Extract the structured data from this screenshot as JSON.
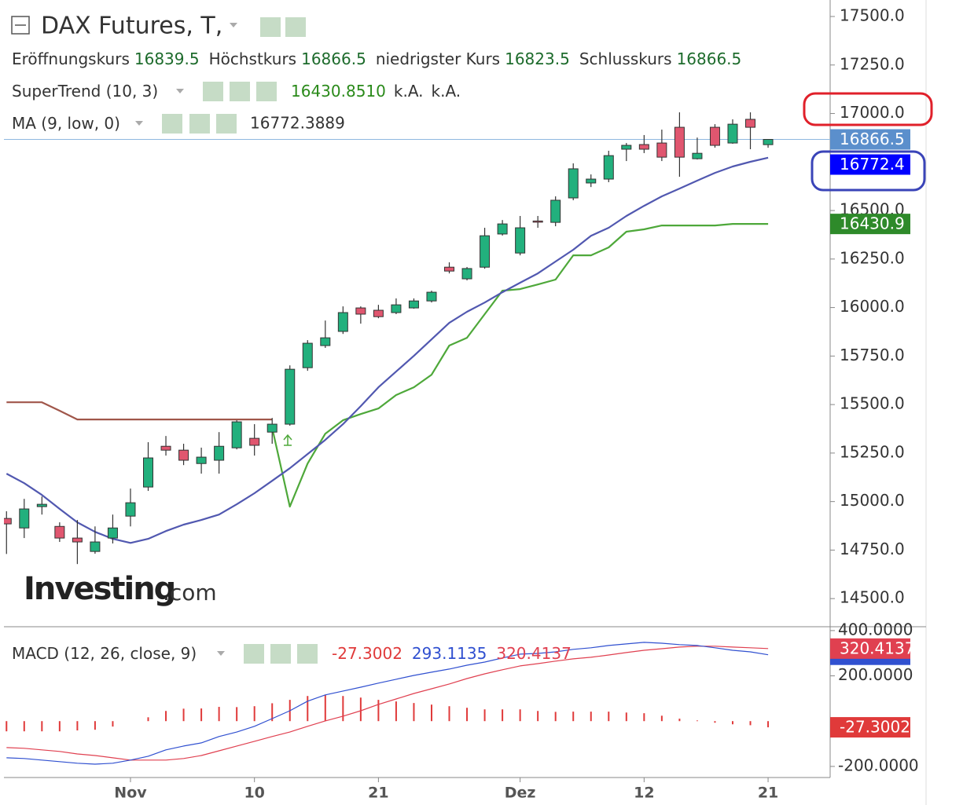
{
  "chart_data": {
    "type": "candlestick",
    "title": "DAX Futures, T,",
    "ohlc_labels": {
      "open": "Eröffnungskurs",
      "high": "Höchstkurs",
      "low": "niedrigster Kurs",
      "close": "Schlusskurs"
    },
    "categories": [
      null,
      null,
      null,
      null,
      null,
      null,
      null,
      "Nov",
      null,
      null,
      null,
      null,
      null,
      null,
      "10",
      null,
      null,
      null,
      null,
      null,
      null,
      "21",
      null,
      null,
      null,
      null,
      null,
      null,
      null,
      "Dez",
      null,
      null,
      null,
      null,
      null,
      null,
      "12",
      null,
      null,
      null,
      null,
      null,
      null,
      "21"
    ],
    "open": [
      14913,
      14864,
      14974,
      14872,
      14812,
      14743,
      14812,
      14925,
      15075,
      15285,
      15265,
      15196,
      15213,
      15277,
      15326,
      15358,
      15399,
      15690,
      15804,
      15877,
      15998,
      15986,
      15974,
      15998,
      16034,
      16208,
      16148,
      16208,
      16379,
      16281,
      16446,
      16439,
      16565,
      16642,
      16662,
      16816,
      16840,
      16848,
      16929,
      16767,
      16929,
      16848,
      16970,
      16839.5
    ],
    "high": [
      14950,
      15014,
      15026,
      14893,
      14905,
      14872,
      14933,
      15067,
      15306,
      15338,
      15298,
      15278,
      15358,
      15419,
      15399,
      15431,
      15702,
      15832,
      15933,
      16006,
      16006,
      16014,
      16047,
      16047,
      16087,
      16233,
      16209,
      16411,
      16451,
      16472,
      16472,
      16573,
      16743,
      16686,
      16808,
      16848,
      16889,
      16917,
      17006,
      16876,
      16945,
      16970,
      17006,
      16866.5
    ],
    "low": [
      14730,
      14812,
      14933,
      14792,
      14678,
      14731,
      14784,
      14872,
      15055,
      15237,
      15188,
      15144,
      15144,
      15269,
      15237,
      15298,
      15391,
      15674,
      15792,
      15864,
      15917,
      15945,
      15966,
      15994,
      16026,
      16176,
      16140,
      16200,
      16371,
      16269,
      16411,
      16419,
      16553,
      16621,
      16646,
      16755,
      16796,
      16755,
      16674,
      16763,
      16824,
      16844,
      16816,
      16823.5
    ],
    "close": [
      14885,
      14962,
      14986,
      14812,
      14792,
      14792,
      14864,
      14994,
      15225,
      15265,
      15213,
      15229,
      15285,
      15411,
      15290,
      15399,
      15682,
      15816,
      15844,
      15974,
      15966,
      15953,
      16014,
      16034,
      16079,
      16188,
      16201,
      16370,
      16431,
      16411,
      16441,
      16553,
      16715,
      16662,
      16783,
      16836,
      16816,
      16775,
      16775,
      16795,
      16836,
      16945,
      16929,
      16866.5
    ],
    "up_color": "#22b07d",
    "down_color": "#e0566f",
    "close_line_color": "#8fb8e0",
    "close_badge_color": "#5b8fcc",
    "ylim": [
      14355,
      17585
    ],
    "yticks": [
      {
        "value": 14500,
        "label": "14500.0"
      },
      {
        "value": 14750,
        "label": "14750.0"
      },
      {
        "value": 15000,
        "label": "15000.0"
      },
      {
        "value": 15250,
        "label": "15250.0"
      },
      {
        "value": 15500,
        "label": "15500.0"
      },
      {
        "value": 15750,
        "label": "15750.0"
      },
      {
        "value": 16000,
        "label": "16000.0"
      },
      {
        "value": 16250,
        "label": "16250.0"
      },
      {
        "value": 16500,
        "label": "16500.0"
      },
      {
        "value": 16750,
        "label": "16750.0"
      },
      {
        "value": 17000,
        "label": "17000.0"
      },
      {
        "value": 17250,
        "label": "17250.0"
      },
      {
        "value": 17500,
        "label": "17500.0"
      }
    ],
    "supertrend": {
      "name": "SuperTrend (10, 3)",
      "last_label": "16430.8510",
      "axis_label": "16430.9",
      "na_labels": [
        "k.A.",
        "k.A."
      ],
      "label_color": "#2a8a1a",
      "badge_color": "#2e8a2a",
      "bearish": {
        "color": "#a0564a",
        "values": [
          15512,
          15512,
          15512,
          15468,
          15423,
          15423,
          15423,
          15423,
          15423,
          15423,
          15423,
          15423,
          15423,
          15423,
          15423,
          15423,
          null,
          null,
          null,
          null,
          null,
          null,
          null,
          null,
          null,
          null,
          null,
          null,
          null,
          null,
          null,
          null,
          null,
          null,
          null,
          null,
          null,
          null,
          null,
          null,
          null,
          null,
          null,
          null
        ]
      },
      "bullish": {
        "color": "#4ea83a",
        "values": [
          null,
          null,
          null,
          null,
          null,
          null,
          null,
          null,
          null,
          null,
          null,
          null,
          null,
          null,
          null,
          15380,
          14974,
          15196,
          15350,
          15419,
          15451,
          15480,
          15549,
          15589,
          15654,
          15804,
          15844,
          15966,
          16087,
          16095,
          16119,
          16144,
          16269,
          16269,
          16310,
          16391,
          16403,
          16423,
          16423,
          16423,
          16423,
          16430.851,
          16430.851,
          16430.851
        ]
      }
    },
    "ma": {
      "name": "MA (9, low, 0)",
      "color": "#5158b0",
      "label_color": "#1010c0",
      "badge_color": "#0000ff",
      "axis_label": "16772.4",
      "values": [
        15144,
        15095,
        15034,
        14962,
        14893,
        14844,
        14808,
        14787,
        14808,
        14848,
        14881,
        14905,
        14933,
        14986,
        15043,
        15107,
        15172,
        15245,
        15318,
        15399,
        15492,
        15589,
        15670,
        15751,
        15836,
        15921,
        15978,
        16026,
        16079,
        16128,
        16176,
        16237,
        16298,
        16370,
        16411,
        16472,
        16524,
        16573,
        16613,
        16654,
        16694,
        16727,
        16751,
        16772.3889
      ]
    },
    "macd": {
      "name": "MACD (12, 26, close, 9)",
      "y2lim": [
        -249,
        417
      ],
      "y2ticks": [
        {
          "value": 400,
          "label": "400.0000"
        },
        {
          "value": 200,
          "label": "200.0000"
        },
        {
          "value": -200,
          "label": "-200.0000"
        }
      ],
      "histogram": {
        "color": "#e03a3a",
        "values": [
          -45,
          -45,
          -45,
          -45,
          -41,
          -38,
          -24,
          0,
          17,
          45,
          55,
          56,
          63,
          62,
          66,
          79,
          94,
          111,
          115,
          111,
          104,
          94,
          87,
          80,
          73,
          66,
          59,
          52,
          52,
          52,
          45,
          41,
          42,
          42,
          42,
          38,
          35,
          24,
          11,
          3,
          -7,
          -14,
          -18,
          -27.3002
        ]
      },
      "macd_line": {
        "color": "#3050d0",
        "values": [
          -162,
          -165,
          -172,
          -179,
          -186,
          -190,
          -186,
          -172,
          -155,
          -127,
          -110,
          -96,
          -68,
          -48,
          -23,
          11,
          46,
          88,
          116,
          133,
          150,
          168,
          185,
          202,
          216,
          230,
          247,
          261,
          279,
          296,
          299,
          306,
          317,
          324,
          334,
          341,
          348,
          344,
          338,
          334,
          324,
          313,
          306,
          293.1135
        ]
      },
      "signal": {
        "color": "#e04050",
        "values": [
          -117,
          -120,
          -127,
          -134,
          -145,
          -152,
          -162,
          -172,
          -172,
          -172,
          -165,
          -152,
          -131,
          -110,
          -89,
          -68,
          -48,
          -23,
          1,
          22,
          46,
          74,
          98,
          122,
          143,
          164,
          188,
          209,
          227,
          244,
          254,
          265,
          275,
          282,
          292,
          303,
          313,
          320,
          327,
          331,
          331,
          327,
          324,
          320.4137
        ]
      }
    },
    "watermark": {
      "brand": "Investing",
      "suffix": ".com"
    }
  }
}
